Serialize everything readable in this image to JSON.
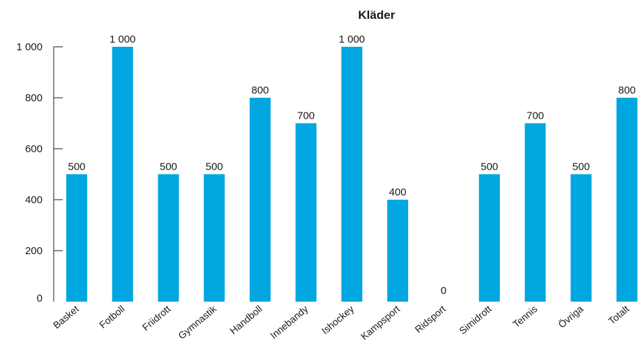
{
  "chart_data": {
    "type": "bar",
    "title": "Kläder",
    "xlabel": "",
    "ylabel": "",
    "ylim": [
      0,
      1000
    ],
    "yticks": [
      0,
      200,
      400,
      600,
      800,
      1000
    ],
    "ytick_labels": [
      "0",
      "200",
      "400",
      "600",
      "800",
      "1 000"
    ],
    "grid": false,
    "bar_color": "#00a6e0",
    "categories": [
      "Basket",
      "Fotboll",
      "Friidrott",
      "Gymnastik",
      "Handboll",
      "Innebandy",
      "Ishockey",
      "Kampsport",
      "Ridsport",
      "Simidrott",
      "Tennis",
      "Övriga",
      "Totalt"
    ],
    "values": [
      500,
      1000,
      500,
      500,
      800,
      700,
      1000,
      400,
      0,
      500,
      700,
      500,
      800
    ],
    "value_labels": [
      "500",
      "1 000",
      "500",
      "500",
      "800",
      "700",
      "1 000",
      "400",
      "0",
      "500",
      "700",
      "500",
      "800"
    ]
  }
}
